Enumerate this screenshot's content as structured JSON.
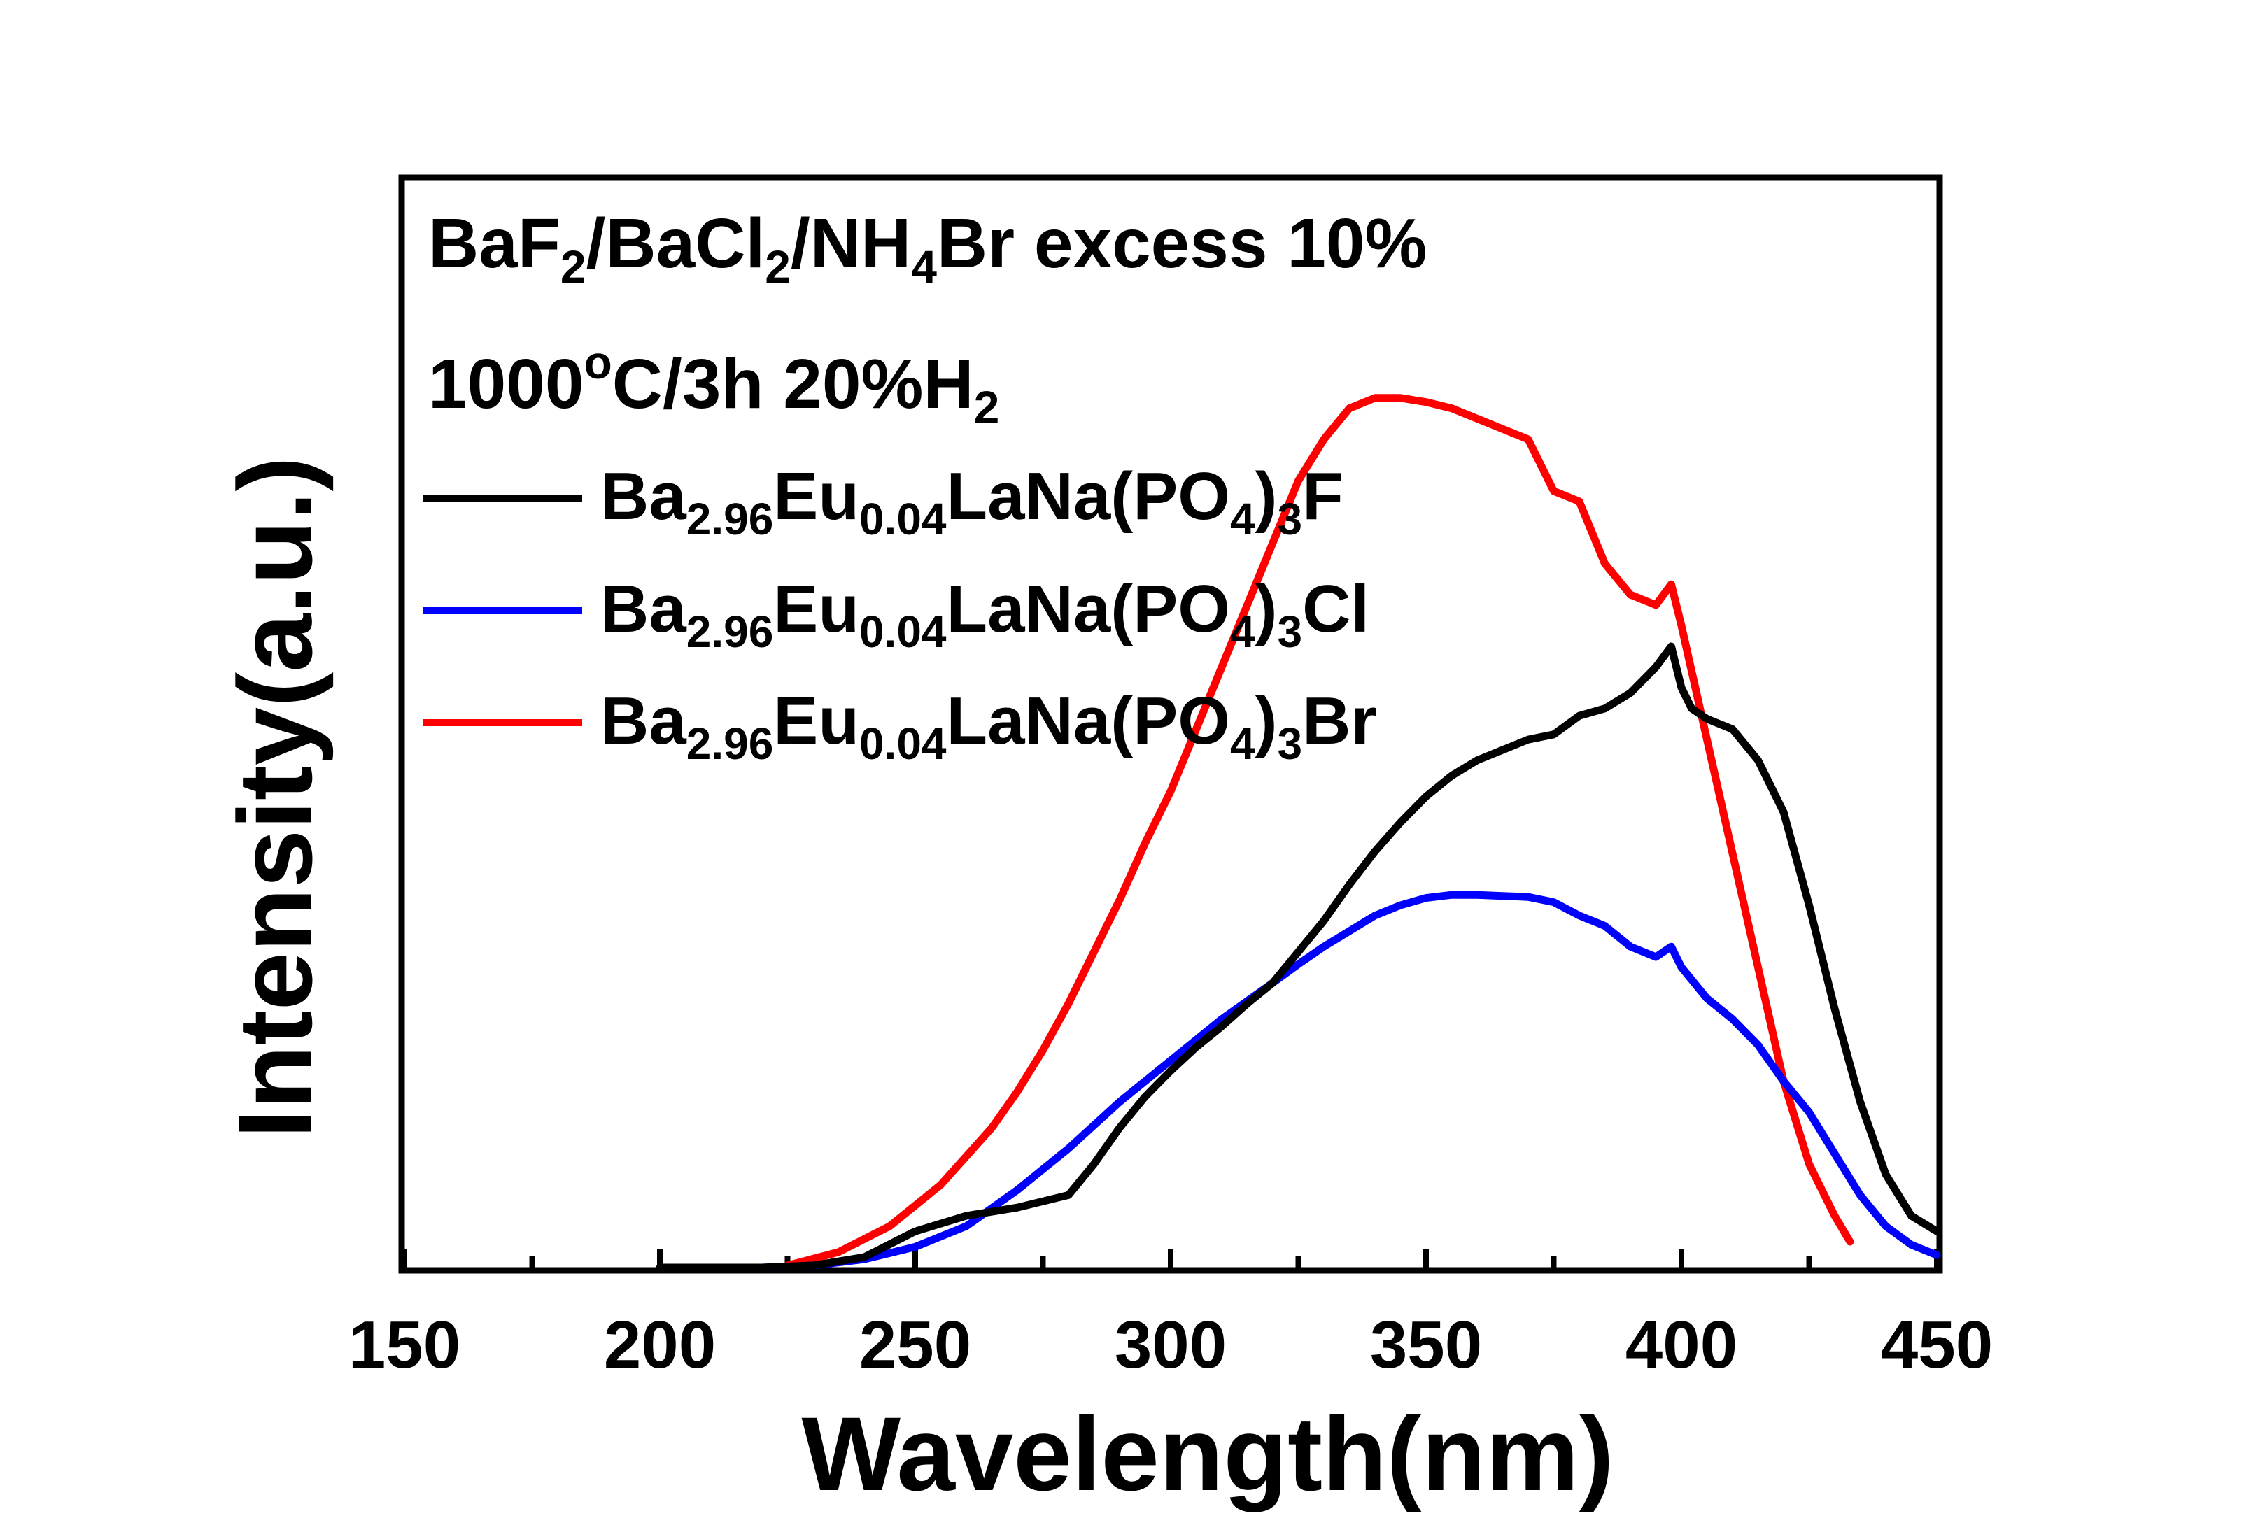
{
  "chart_data": {
    "type": "line",
    "xlabel": "Wavelength(nm)",
    "ylabel": "Intensity(a.u.)",
    "xlim": [
      150,
      450
    ],
    "ylim": [
      0,
      1.05
    ],
    "xticks": [
      150,
      200,
      250,
      300,
      350,
      400,
      450
    ],
    "xtick_labels": [
      "150",
      "200",
      "250",
      "300",
      "350",
      "400",
      "450"
    ],
    "yticks_shown": false,
    "grid": false,
    "legend_position": "top-left",
    "annotations": {
      "line1": {
        "main": "BaF",
        "sub1": "2",
        "mid1": "/BaCl",
        "sub2": "2",
        "mid2": "/NH",
        "sub3": "4",
        "tail": "Br excess 10%"
      },
      "line2": {
        "main": "1000",
        "sup": "o",
        "mid": "C/3h  20%H",
        "sub": "2"
      }
    },
    "series": [
      {
        "name": "Ba2.96Eu0.04LaNa(PO4)3F",
        "legend": {
          "p1": "Ba",
          "s1": "2.96",
          "p2": "Eu",
          "s2": "0.04",
          "p3": "LaNa(PO",
          "s3": "4",
          "p4": ")",
          "s4": "3",
          "p5": "F"
        },
        "color": "#000000",
        "x": [
          200,
          220,
          230,
          240,
          250,
          260,
          270,
          280,
          285,
          290,
          295,
          300,
          305,
          310,
          315,
          320,
          325,
          330,
          335,
          340,
          345,
          350,
          355,
          360,
          365,
          370,
          375,
          380,
          385,
          390,
          395,
          398,
          400,
          402,
          405,
          410,
          415,
          420,
          425,
          430,
          435,
          440,
          445,
          450
        ],
        "y": [
          0.0,
          0.0,
          0.002,
          0.01,
          0.035,
          0.05,
          0.058,
          0.07,
          0.1,
          0.135,
          0.165,
          0.19,
          0.213,
          0.233,
          0.255,
          0.275,
          0.305,
          0.335,
          0.37,
          0.402,
          0.43,
          0.455,
          0.475,
          0.49,
          0.5,
          0.51,
          0.515,
          0.533,
          0.54,
          0.555,
          0.58,
          0.6,
          0.56,
          0.54,
          0.53,
          0.52,
          0.49,
          0.44,
          0.35,
          0.25,
          0.16,
          0.09,
          0.05,
          0.035
        ]
      },
      {
        "name": "Ba2.96Eu0.04LaNa(PO4)3Cl",
        "legend": {
          "p1": "Ba",
          "s1": "2.96",
          "p2": "Eu",
          "s2": "0.04",
          "p3": "LaNa(PO",
          "s3": "4",
          "p4": ")",
          "s4": "3",
          "p5": "Cl"
        },
        "color": "#0000ff",
        "x": [
          200,
          220,
          230,
          240,
          250,
          260,
          270,
          280,
          290,
          300,
          310,
          320,
          325,
          330,
          340,
          345,
          350,
          355,
          360,
          370,
          375,
          380,
          385,
          390,
          395,
          398,
          400,
          405,
          410,
          415,
          420,
          425,
          430,
          435,
          440,
          445,
          450
        ],
        "y": [
          0.0,
          0.0,
          0.002,
          0.008,
          0.02,
          0.04,
          0.075,
          0.115,
          0.16,
          0.2,
          0.24,
          0.275,
          0.293,
          0.31,
          0.34,
          0.35,
          0.357,
          0.36,
          0.36,
          0.358,
          0.353,
          0.34,
          0.33,
          0.31,
          0.3,
          0.31,
          0.29,
          0.26,
          0.24,
          0.215,
          0.18,
          0.15,
          0.11,
          0.07,
          0.04,
          0.022,
          0.012
        ]
      },
      {
        "name": "Ba2.96Eu0.04LaNa(PO4)3Br",
        "legend": {
          "p1": "Ba",
          "s1": "2.96",
          "p2": "Eu",
          "s2": "0.04",
          "p3": "LaNa(PO",
          "s3": "4",
          "p4": ")",
          "s4": "3",
          "p5": "Br"
        },
        "color": "#ff0000",
        "x": [
          225,
          235,
          245,
          255,
          265,
          270,
          275,
          280,
          285,
          290,
          295,
          300,
          305,
          310,
          315,
          320,
          325,
          330,
          335,
          340,
          345,
          350,
          355,
          360,
          365,
          370,
          375,
          380,
          385,
          390,
          395,
          398,
          400,
          405,
          410,
          415,
          420,
          425,
          430,
          433
        ],
        "y": [
          0.002,
          0.015,
          0.04,
          0.08,
          0.135,
          0.17,
          0.21,
          0.255,
          0.305,
          0.355,
          0.41,
          0.46,
          0.52,
          0.58,
          0.64,
          0.7,
          0.76,
          0.8,
          0.83,
          0.84,
          0.84,
          0.836,
          0.83,
          0.82,
          0.81,
          0.8,
          0.75,
          0.74,
          0.68,
          0.65,
          0.64,
          0.66,
          0.62,
          0.51,
          0.4,
          0.29,
          0.18,
          0.1,
          0.05,
          0.025
        ]
      }
    ]
  }
}
